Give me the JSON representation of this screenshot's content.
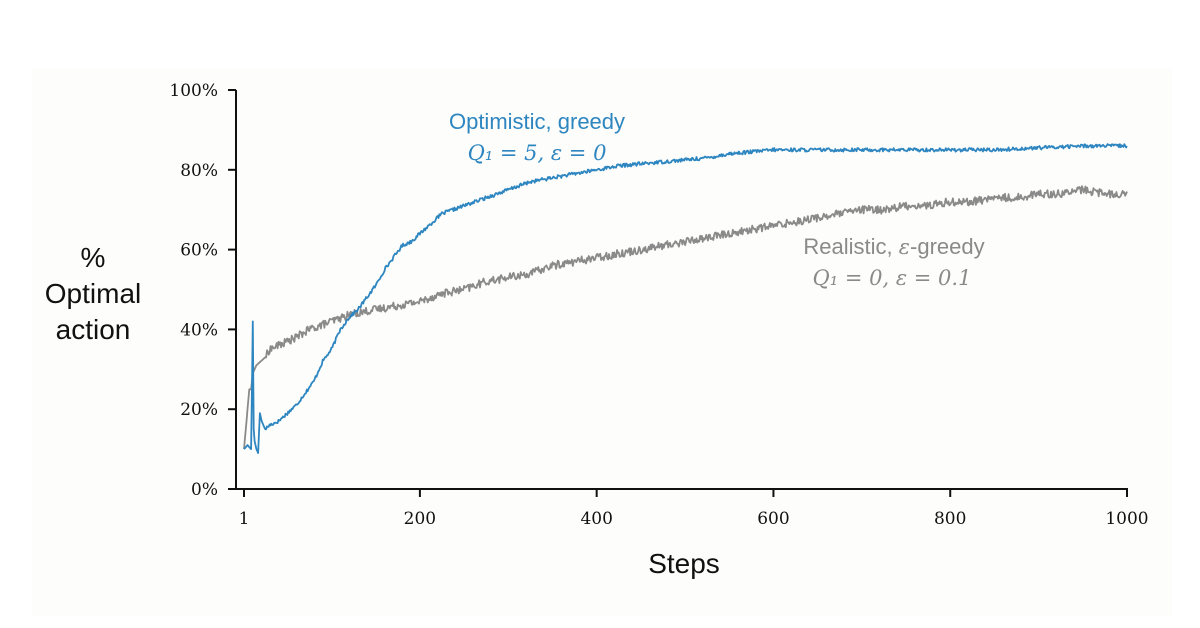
{
  "chart_data": {
    "type": "line",
    "xlabel": "Steps",
    "ylabel_lines": [
      "%",
      "Optimal",
      "action"
    ],
    "xlim": [
      1,
      1000
    ],
    "ylim": [
      0,
      100
    ],
    "x_ticks": [
      {
        "value": 1,
        "label": "1"
      },
      {
        "value": 200,
        "label": "200"
      },
      {
        "value": 400,
        "label": "400"
      },
      {
        "value": 600,
        "label": "600"
      },
      {
        "value": 800,
        "label": "800"
      },
      {
        "value": 1000,
        "label": "1000"
      }
    ],
    "y_ticks": [
      {
        "value": 0,
        "label": "0%"
      },
      {
        "value": 20,
        "label": "20%"
      },
      {
        "value": 40,
        "label": "40%"
      },
      {
        "value": 60,
        "label": "60%"
      },
      {
        "value": 80,
        "label": "80%"
      },
      {
        "value": 100,
        "label": "100%"
      }
    ],
    "series": [
      {
        "name": "Optimistic, greedy",
        "params": "Q1=5, ε=0",
        "color": "#2e86c1",
        "x": [
          1,
          5,
          9,
          11,
          12,
          13,
          15,
          17,
          19,
          21,
          23,
          25,
          30,
          40,
          50,
          60,
          70,
          80,
          90,
          100,
          110,
          120,
          130,
          140,
          150,
          160,
          170,
          180,
          190,
          200,
          225,
          250,
          275,
          300,
          325,
          350,
          375,
          400,
          425,
          450,
          475,
          500,
          525,
          550,
          575,
          600,
          650,
          700,
          750,
          800,
          850,
          900,
          950,
          1000
        ],
        "y": [
          10,
          11,
          10,
          42,
          15,
          12,
          10,
          9,
          19,
          17,
          16,
          15,
          16,
          17,
          19,
          21,
          24,
          27,
          32,
          35,
          40,
          43,
          45,
          48,
          51,
          55,
          58,
          61,
          62,
          64,
          69,
          71,
          73,
          75,
          77,
          78,
          79,
          80,
          81,
          81.5,
          82,
          82.5,
          83,
          84,
          84.5,
          85,
          85,
          85,
          85,
          85,
          85,
          85.5,
          86,
          86
        ]
      },
      {
        "name": "Realistic, ε-greedy",
        "params": "Q1=0, ε=0.1",
        "color": "#8a8a8a",
        "x": [
          1,
          3,
          5,
          7,
          9,
          11,
          13,
          15,
          20,
          25,
          30,
          40,
          50,
          60,
          75,
          100,
          125,
          150,
          175,
          200,
          225,
          250,
          275,
          300,
          325,
          350,
          375,
          400,
          425,
          450,
          475,
          500,
          525,
          550,
          575,
          600,
          625,
          650,
          675,
          700,
          725,
          750,
          775,
          800,
          825,
          850,
          875,
          900,
          925,
          950,
          975,
          1000
        ],
        "y": [
          10,
          15,
          20,
          25,
          25,
          29,
          30,
          31,
          32,
          33,
          35,
          36,
          37,
          38,
          40,
          42,
          44,
          45,
          46,
          47,
          49,
          50,
          52,
          53,
          54,
          56,
          57,
          58,
          59,
          60,
          61,
          62,
          63,
          64,
          65,
          66,
          67,
          68,
          69,
          70,
          70,
          71,
          71,
          72,
          72,
          73,
          73,
          74,
          74,
          75,
          74,
          74
        ]
      }
    ],
    "annotations": [
      {
        "series": 0,
        "line1": "Optimistic, greedy",
        "line2": "Q₁ = 5,  ε = 0"
      },
      {
        "series": 1,
        "line1_text": "Realistic,",
        "line1_symbol": "ε",
        "line1_suffix": "-greedy",
        "line2": "Q₁ = 0,  ε = 0.1"
      }
    ]
  }
}
